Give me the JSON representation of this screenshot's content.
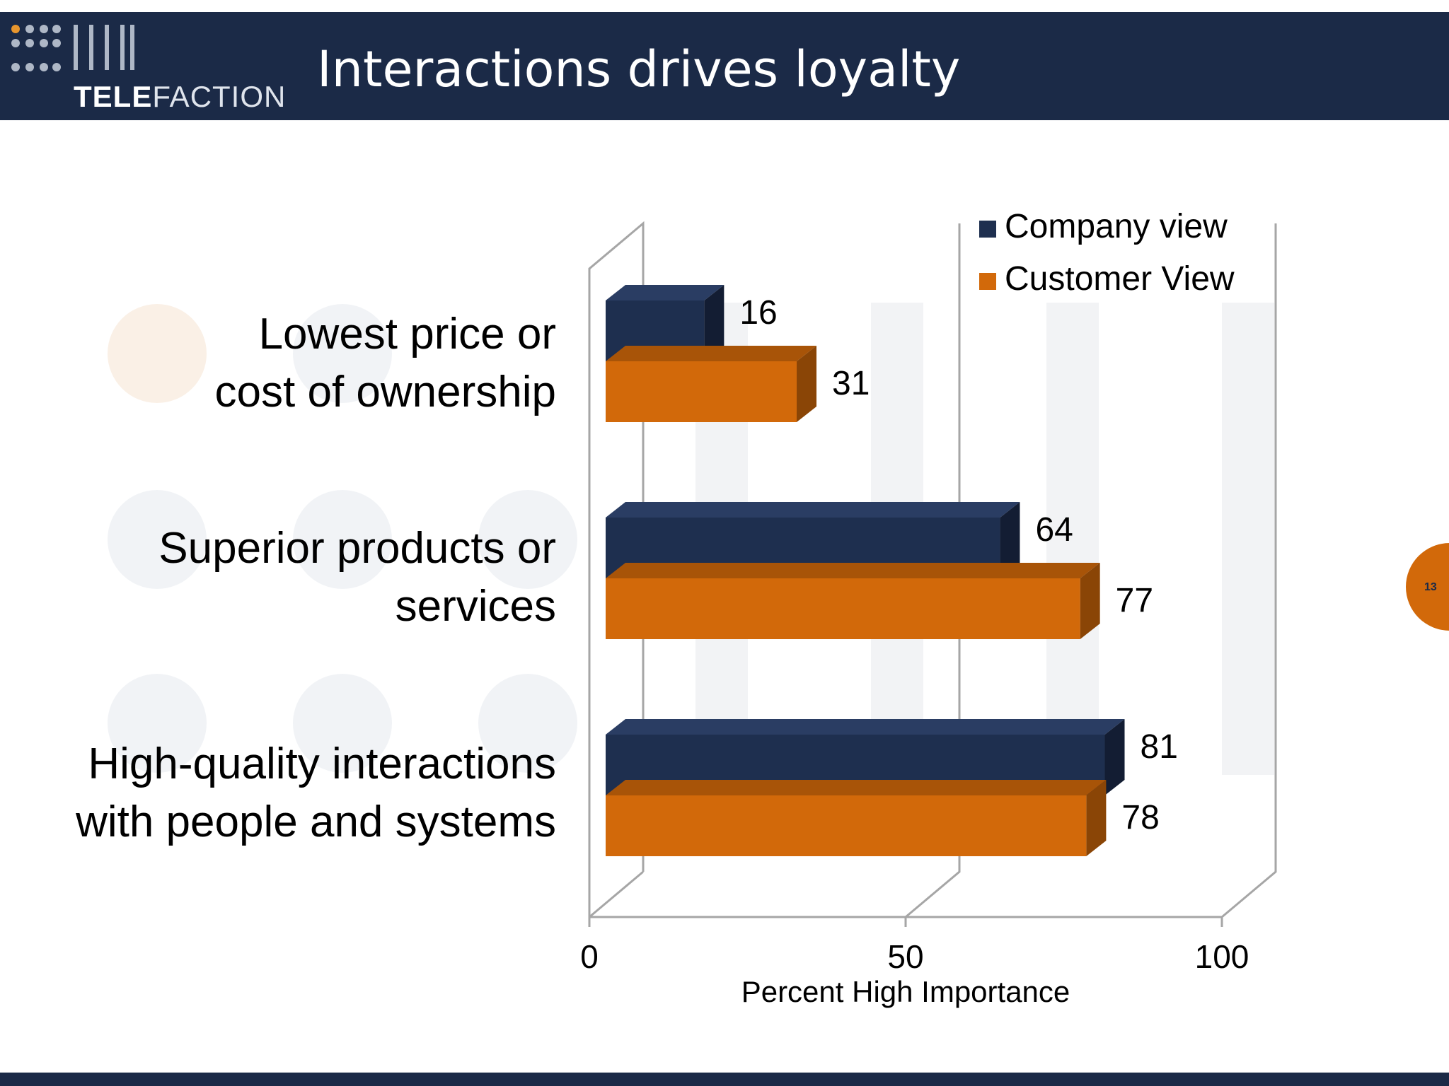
{
  "header": {
    "title": "Interactions drives loyalty",
    "logo_text_bold": "TELE",
    "logo_text_light": "FACTION"
  },
  "page_number": "13",
  "colors": {
    "navy": "#1b2a47",
    "orange": "#d2690a",
    "company_bar": "#1e2f4f",
    "customer_bar": "#d2690a"
  },
  "chart_data": {
    "type": "bar",
    "orientation": "horizontal",
    "three_d": true,
    "categories": [
      [
        "Lowest price or",
        "cost of ownership"
      ],
      [
        "Superior products or",
        "services"
      ],
      [
        "High-quality interactions",
        "with people and systems"
      ]
    ],
    "series": [
      {
        "name": "Company view",
        "values": [
          16,
          64,
          81
        ]
      },
      {
        "name": "Customer View",
        "values": [
          31,
          77,
          78
        ]
      }
    ],
    "xlabel": "Percent High Importance",
    "ylabel": "",
    "xlim": [
      0,
      100
    ],
    "ticks": [
      "0",
      "50",
      "100"
    ],
    "legend": "top-right",
    "grid": true
  }
}
